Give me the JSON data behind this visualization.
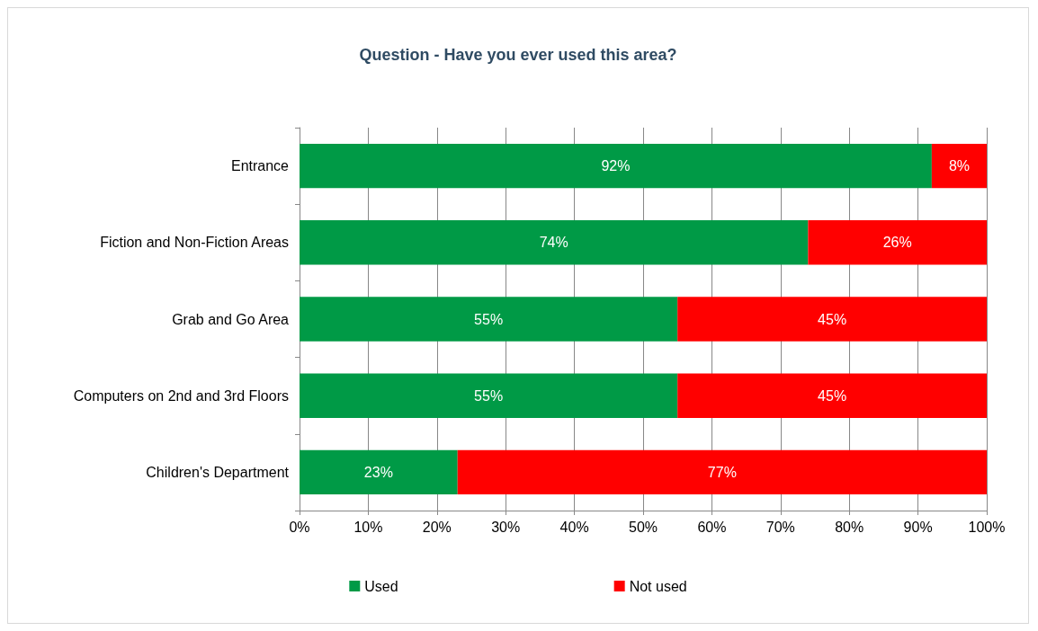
{
  "chart_data": {
    "type": "bar",
    "orientation": "horizontal",
    "stacked": true,
    "title": "Question - Have you ever used this area?",
    "categories": [
      "Entrance",
      "Fiction and Non-Fiction Areas",
      "Grab and Go Area",
      "Computers on 2nd and 3rd Floors",
      "Children's Department"
    ],
    "series": [
      {
        "name": "Used",
        "color": "#009a46",
        "values": [
          92,
          74,
          55,
          55,
          23
        ],
        "value_labels": [
          "92%",
          "74%",
          "55%",
          "55%",
          "23%"
        ]
      },
      {
        "name": "Not used",
        "color": "#ff0000",
        "values": [
          8,
          26,
          45,
          45,
          77
        ],
        "value_labels": [
          "8%",
          "26%",
          "45%",
          "45%",
          "77%"
        ]
      }
    ],
    "xlim": [
      0,
      100
    ],
    "xticks": [
      {
        "value": 0,
        "label": "0%"
      },
      {
        "value": 10,
        "label": "10%"
      },
      {
        "value": 20,
        "label": "20%"
      },
      {
        "value": 30,
        "label": "30%"
      },
      {
        "value": 40,
        "label": "40%"
      },
      {
        "value": 50,
        "label": "50%"
      },
      {
        "value": 60,
        "label": "60%"
      },
      {
        "value": 70,
        "label": "70%"
      },
      {
        "value": 80,
        "label": "80%"
      },
      {
        "value": 90,
        "label": "90%"
      },
      {
        "value": 100,
        "label": "100%"
      }
    ],
    "grid": "x",
    "legend": "bottom"
  }
}
